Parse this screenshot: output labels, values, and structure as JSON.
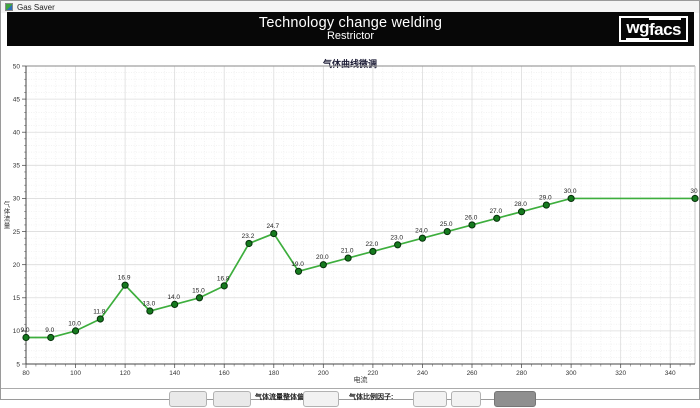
{
  "window": {
    "title": "Gas Saver"
  },
  "header": {
    "title": "Technology change welding",
    "subtitle": "Restrictor",
    "logo_part1": "wg",
    "logo_part2": "facs"
  },
  "chart_data": {
    "type": "line",
    "title": "气体曲线微调",
    "xlabel": "电流",
    "ylabel": "气体流量",
    "x": [
      80,
      90,
      100,
      110,
      120,
      130,
      140,
      150,
      160,
      170,
      180,
      190,
      200,
      210,
      220,
      230,
      240,
      250,
      260,
      270,
      280,
      290,
      300,
      350
    ],
    "values": [
      9.0,
      9.0,
      10.0,
      11.8,
      16.9,
      13.0,
      14.0,
      15.0,
      16.8,
      23.2,
      24.7,
      19.0,
      20.0,
      21.0,
      22.0,
      23.0,
      24.0,
      25.0,
      26.0,
      27.0,
      28.0,
      29.0,
      30.0,
      30.0
    ],
    "point_labels": [
      "9.0",
      "9.0",
      "10.0",
      "11.8",
      "16.9",
      "13.0",
      "14.0",
      "15.0",
      "16.8",
      "23.2",
      "24.7",
      "19.0",
      "20.0",
      "21.0",
      "22.0",
      "23.0",
      "24.0",
      "25.0",
      "26.0",
      "27.0",
      "28.0",
      "29.0",
      "30.0",
      "30"
    ],
    "xlim": [
      80,
      350
    ],
    "ylim": [
      5,
      50
    ],
    "x_ticks": [
      80,
      100,
      120,
      140,
      160,
      180,
      200,
      220,
      240,
      260,
      280,
      300,
      320,
      340
    ],
    "y_ticks": [
      5,
      10,
      15,
      20,
      25,
      30,
      35,
      40,
      45,
      50
    ],
    "grid": true,
    "legend": false,
    "line_color": "#3dae3d",
    "point_color": "#157a1e"
  },
  "bottom_bar": {
    "offset_label": "气体流量整体偏移:",
    "factor_label": "气体比例因子:"
  }
}
